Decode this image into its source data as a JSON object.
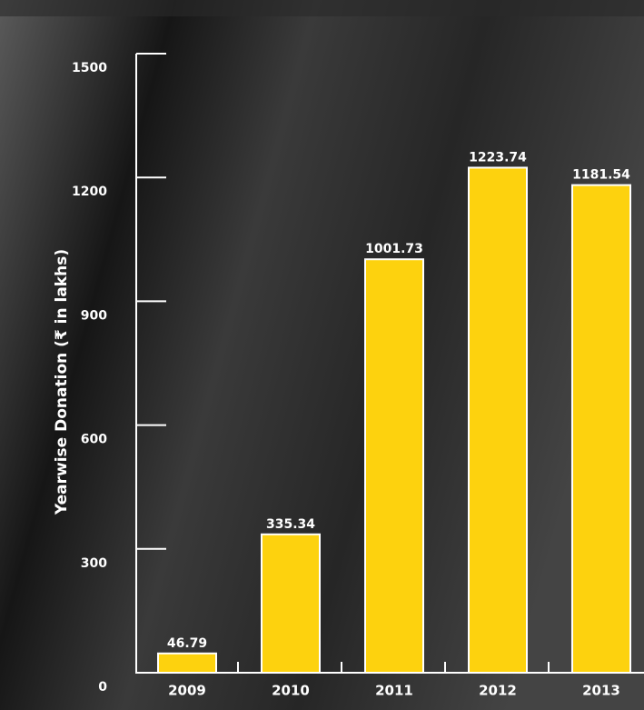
{
  "chart_data": {
    "type": "bar",
    "ylabel": "Yearwise Donation  (₹ in lakhs)",
    "categories": [
      "2009",
      "2010",
      "2011",
      "2012",
      "2013"
    ],
    "values": [
      46.79,
      335.34,
      1001.73,
      1223.74,
      1181.54
    ],
    "color": "#fdd20e",
    "ylim": [
      0,
      1500
    ],
    "yticks": [
      0,
      300,
      600,
      900,
      1200,
      1500
    ]
  }
}
